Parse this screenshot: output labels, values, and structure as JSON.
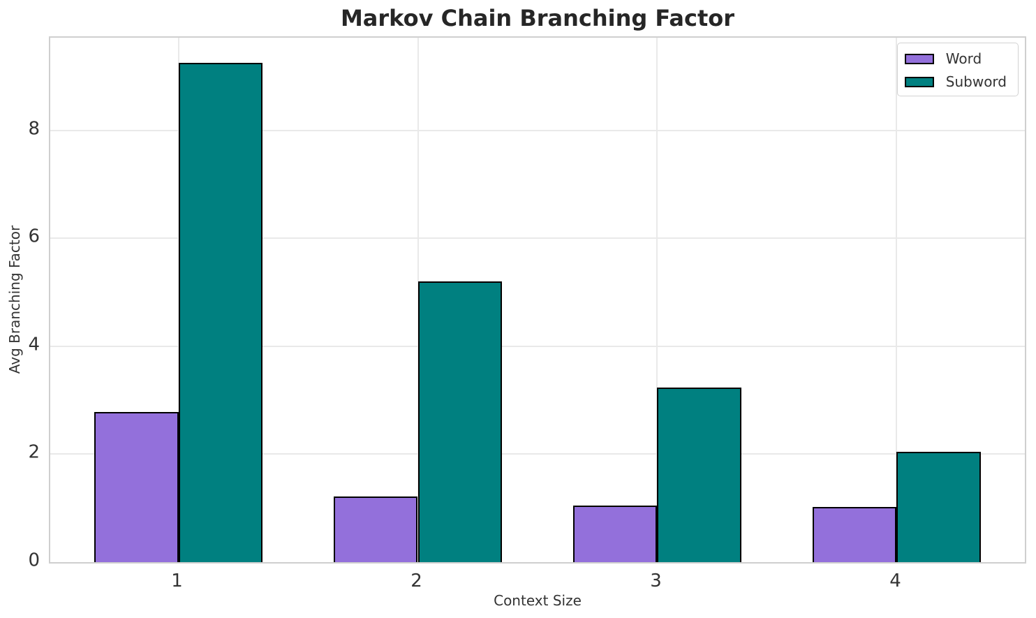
{
  "chart_data": {
    "type": "bar",
    "title": "Markov Chain Branching Factor",
    "xlabel": "Context Size",
    "ylabel": "Avg Branching Factor",
    "categories": [
      "1",
      "2",
      "3",
      "4"
    ],
    "series": [
      {
        "name": "Word",
        "color": "#9370DB",
        "values": [
          2.78,
          1.22,
          1.05,
          1.02
        ]
      },
      {
        "name": "Subword",
        "color": "#008080",
        "values": [
          9.25,
          5.2,
          3.23,
          2.05
        ]
      }
    ],
    "bar_width": 0.35,
    "bar_edge_color": "#000000",
    "xlim": [
      0.465,
      4.535
    ],
    "ylim": [
      0,
      9.72
    ],
    "yticks": [
      0,
      2,
      4,
      6,
      8
    ],
    "grid": true,
    "legend_position": "upper right",
    "colors": {
      "grid": "#e9e9e9",
      "spine": "#cfcfcf",
      "text": "#333333",
      "title": "#262626",
      "background": "#ffffff"
    }
  }
}
